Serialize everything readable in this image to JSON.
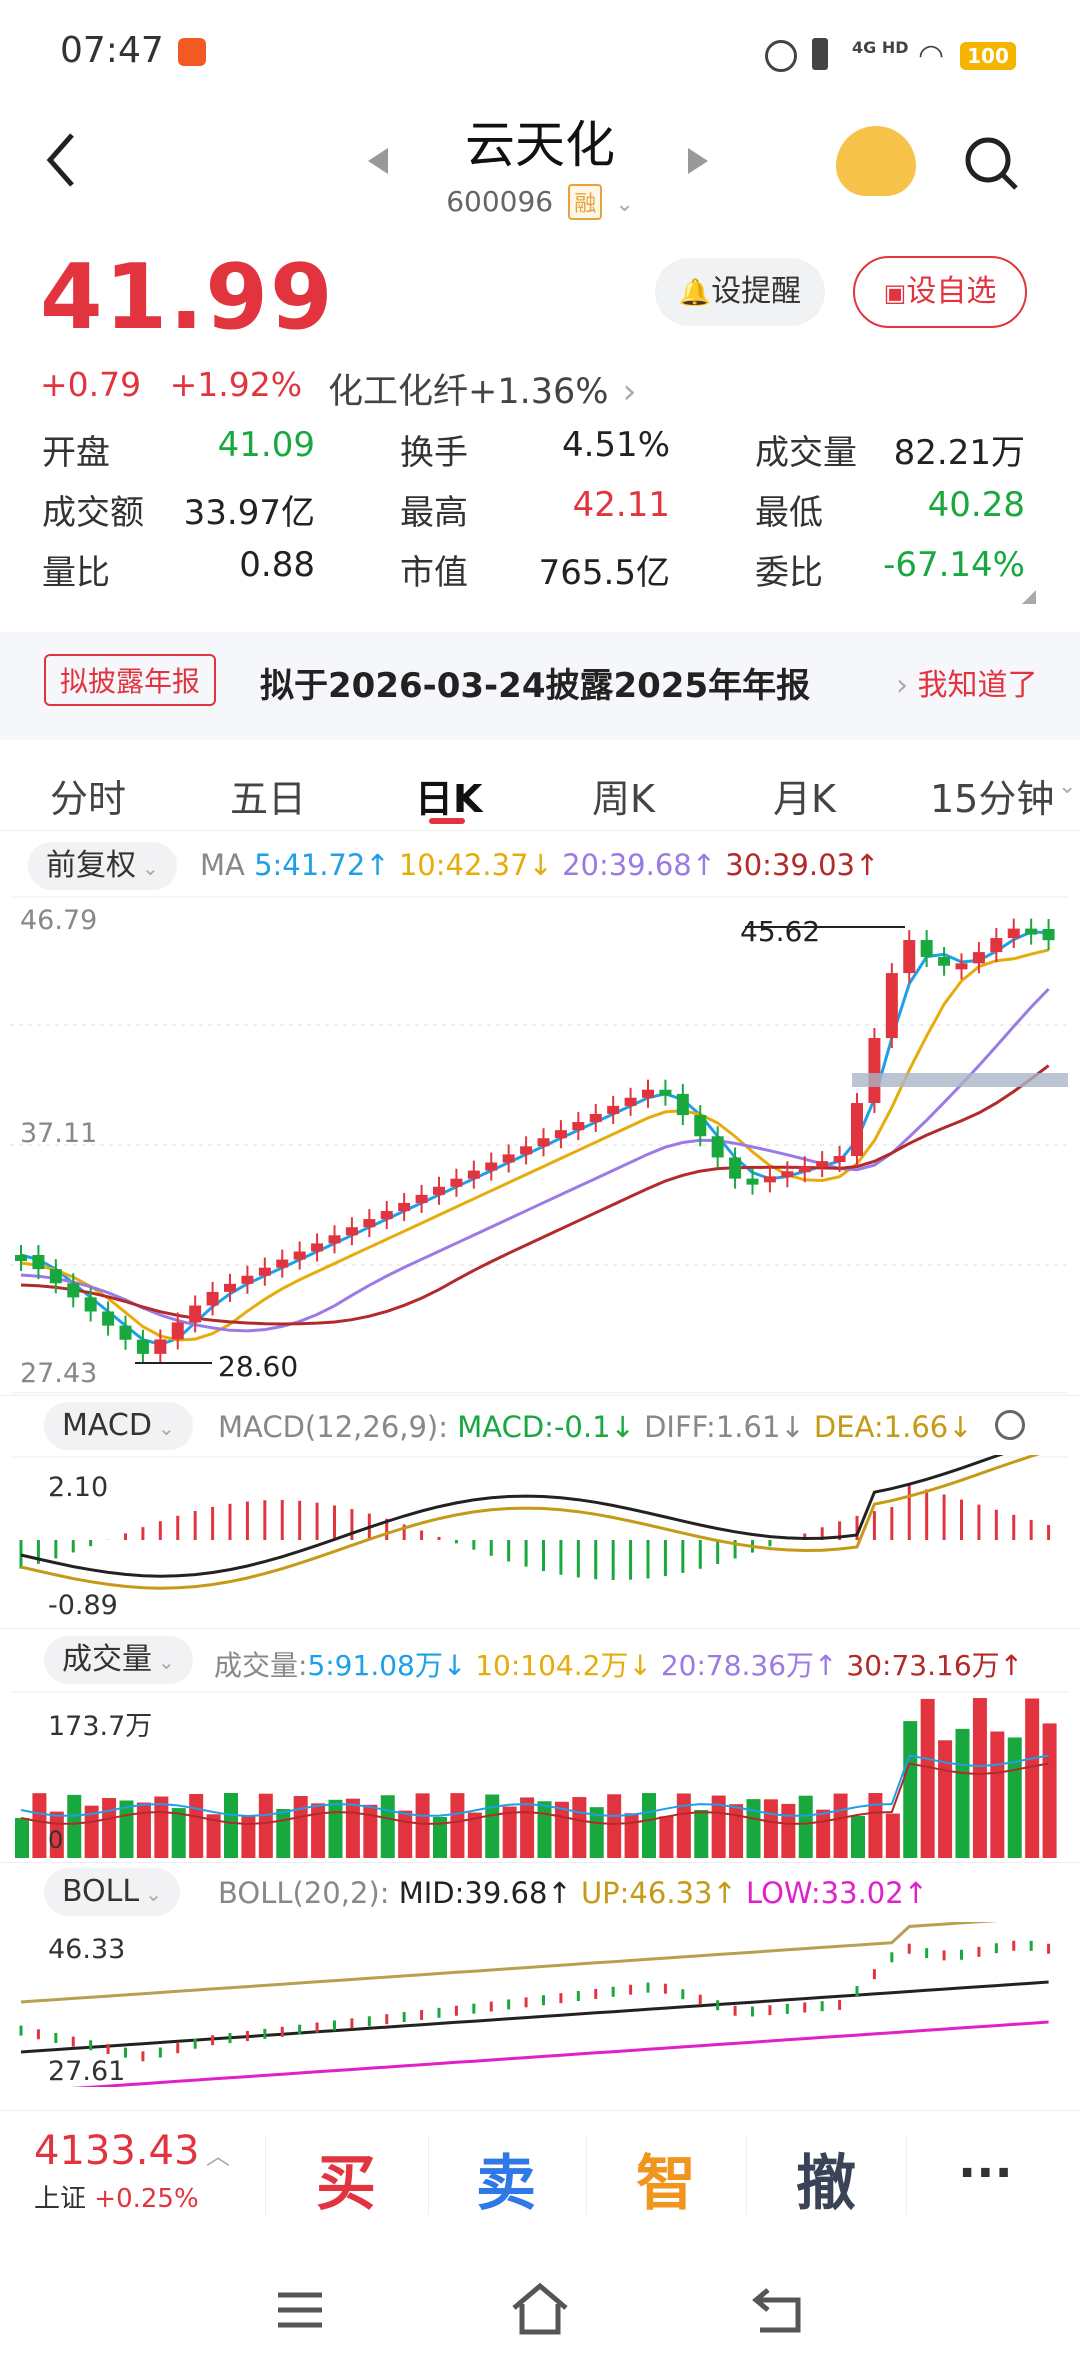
{
  "status": {
    "time": "07:47",
    "network": "4G HD",
    "battery": "100"
  },
  "header": {
    "name": "云天化",
    "code": "600096",
    "margin_badge": "融"
  },
  "quote": {
    "price": "41.99",
    "change": "+0.79",
    "change_pct": "+1.92%",
    "sector": "化工化纤",
    "sector_pct": "+1.36%",
    "remind_label": "设提醒",
    "watch_label": "设自选"
  },
  "stats": [
    {
      "label": "开盘",
      "value": "41.09",
      "color": "green"
    },
    {
      "label": "换手",
      "value": "4.51%",
      "color": "dark"
    },
    {
      "label": "成交量",
      "value": "82.21万",
      "color": "dark"
    },
    {
      "label": "成交额",
      "value": "33.97亿",
      "color": "dark"
    },
    {
      "label": "最高",
      "value": "42.11",
      "color": "red"
    },
    {
      "label": "最低",
      "value": "40.28",
      "color": "green"
    },
    {
      "label": "量比",
      "value": "0.88",
      "color": "dark"
    },
    {
      "label": "市值",
      "value": "765.5亿",
      "color": "dark"
    },
    {
      "label": "委比",
      "value": "-67.14%",
      "color": "green"
    }
  ],
  "banner": {
    "tag": "拟披露年报",
    "text": "拟于2026-03-24披露2025年年报",
    "action": "我知道了"
  },
  "tabs": [
    "分时",
    "五日",
    "日K",
    "周K",
    "月K",
    "15分钟"
  ],
  "active_tab": "日K",
  "main_chart": {
    "adjust_label": "前复权",
    "ma_prefix": "MA",
    "ma": [
      {
        "text": "5:41.72↑",
        "color": "#1ea0e8"
      },
      {
        "text": "10:42.37↓",
        "color": "#e6ac0c"
      },
      {
        "text": "20:39.68↑",
        "color": "#9c7ae6"
      },
      {
        "text": "30:39.03↑",
        "color": "#b22a2a"
      }
    ],
    "y_top": "46.79",
    "y_mid": "37.11",
    "y_bot": "27.43",
    "high_label": "45.62",
    "low_label": "28.60"
  },
  "macd": {
    "selector": "MACD",
    "params": "MACD(12,26,9):",
    "macd": "MACD:-0.1↓",
    "diff": "DIFF:1.61↓",
    "dea": "DEA:1.66↓",
    "y_top": "2.10",
    "y_bot": "-0.89"
  },
  "volume": {
    "selector": "成交量",
    "prefix": "成交量:",
    "ma": [
      {
        "text": "5:91.08万↓",
        "color": "#1ea0e8"
      },
      {
        "text": "10:104.2万↓",
        "color": "#e6ac0c"
      },
      {
        "text": "20:78.36万↑",
        "color": "#9c7ae6"
      },
      {
        "text": "30:73.16万↑",
        "color": "#b22a2a"
      }
    ],
    "y_top": "173.7万",
    "y_bot": "0"
  },
  "boll": {
    "selector": "BOLL",
    "params": "BOLL(20,2):",
    "mid": "MID:39.68↑",
    "up": "UP:46.33↑",
    "low": "LOW:33.02↑",
    "y_top": "46.33",
    "y_bot": "27.61"
  },
  "index": {
    "value": "4133.43",
    "name": "上证",
    "pct": "+0.25%"
  },
  "actions": {
    "buy": "买",
    "sell": "卖",
    "smart": "智",
    "cancel": "撤",
    "more": "···"
  }
}
